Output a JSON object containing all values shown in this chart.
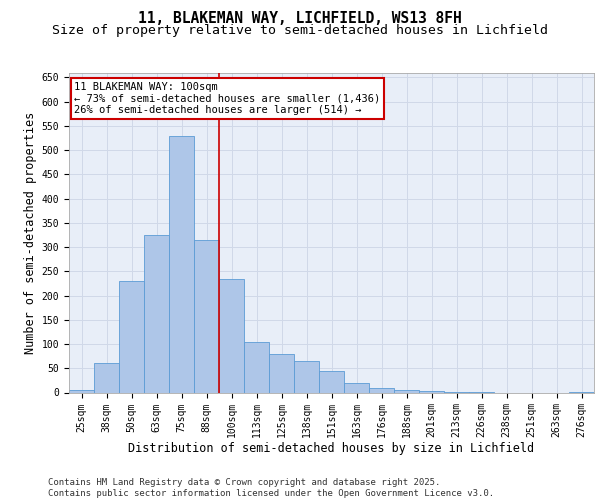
{
  "title_line1": "11, BLAKEMAN WAY, LICHFIELD, WS13 8FH",
  "title_line2": "Size of property relative to semi-detached houses in Lichfield",
  "xlabel": "Distribution of semi-detached houses by size in Lichfield",
  "ylabel": "Number of semi-detached properties",
  "footnote": "Contains HM Land Registry data © Crown copyright and database right 2025.\nContains public sector information licensed under the Open Government Licence v3.0.",
  "annotation_title": "11 BLAKEMAN WAY: 100sqm",
  "annotation_line1": "← 73% of semi-detached houses are smaller (1,436)",
  "annotation_line2": "26% of semi-detached houses are larger (514) →",
  "property_sqm": 100,
  "bar_labels": [
    "25sqm",
    "38sqm",
    "50sqm",
    "63sqm",
    "75sqm",
    "88sqm",
    "100sqm",
    "113sqm",
    "125sqm",
    "138sqm",
    "151sqm",
    "163sqm",
    "176sqm",
    "188sqm",
    "201sqm",
    "213sqm",
    "226sqm",
    "238sqm",
    "251sqm",
    "263sqm",
    "276sqm"
  ],
  "bar_values": [
    5,
    60,
    230,
    325,
    530,
    315,
    235,
    105,
    80,
    65,
    45,
    20,
    10,
    5,
    3,
    1,
    1,
    0,
    0,
    0,
    1
  ],
  "bar_color": "#aec6e8",
  "bar_edge_color": "#5b9bd5",
  "marker_color": "#cc0000",
  "ylim": [
    0,
    660
  ],
  "yticks": [
    0,
    50,
    100,
    150,
    200,
    250,
    300,
    350,
    400,
    450,
    500,
    550,
    600,
    650
  ],
  "grid_color": "#d0d8e8",
  "background_color": "#e8eef8",
  "annotation_box_color": "#ffffff",
  "annotation_box_edge": "#cc0000",
  "title_fontsize": 10.5,
  "subtitle_fontsize": 9.5,
  "axis_label_fontsize": 8.5,
  "tick_fontsize": 7,
  "annotation_fontsize": 7.5,
  "footnote_fontsize": 6.5
}
